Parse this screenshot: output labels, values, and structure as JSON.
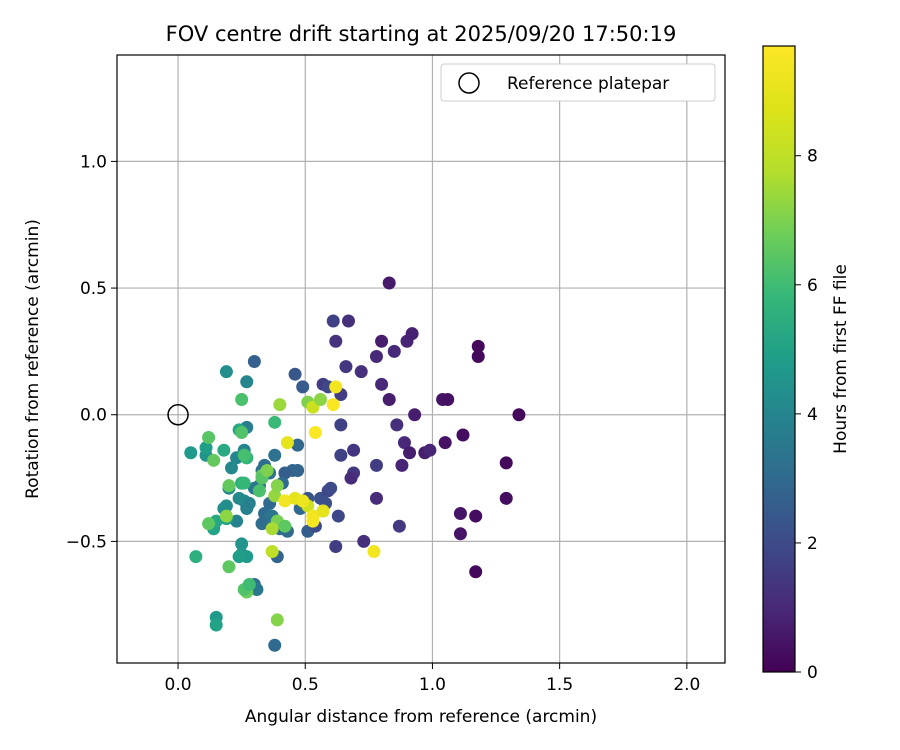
{
  "chart_data": {
    "type": "scatter",
    "title": "FOV centre drift starting at 2025/09/20 17:50:19",
    "xlabel": "Angular distance from reference (arcmin)",
    "ylabel": "Rotation from reference (arcmin)",
    "xlim": [
      -0.24,
      2.15
    ],
    "ylim": [
      -0.98,
      1.42
    ],
    "xticks": [
      0.0,
      0.5,
      1.0,
      1.5,
      2.0
    ],
    "xtick_labels": [
      "0.0",
      "0.5",
      "1.0",
      "1.5",
      "2.0"
    ],
    "yticks": [
      -0.5,
      0.0,
      0.5,
      1.0
    ],
    "ytick_labels": [
      "−0.5",
      "0.0",
      "0.5",
      "1.0"
    ],
    "grid": true,
    "legend": {
      "position": "top-right",
      "label": "Reference platepar"
    },
    "reference_point": {
      "x": 0.0,
      "y": 0.0
    },
    "colorbar": {
      "label": "Hours from first FF file",
      "min": 0,
      "max": 9.7,
      "ticks": [
        0,
        2,
        4,
        6,
        8
      ],
      "tick_labels": [
        "0",
        "2",
        "4",
        "6",
        "8"
      ],
      "colormap": "viridis"
    },
    "points": [
      [
        0.83,
        0.52,
        0.6
      ],
      [
        0.67,
        0.37,
        1.2
      ],
      [
        0.61,
        0.37,
        1.7
      ],
      [
        0.8,
        0.29,
        0.7
      ],
      [
        0.62,
        0.29,
        1.3
      ],
      [
        0.9,
        0.29,
        0.9
      ],
      [
        0.92,
        0.32,
        0.8
      ],
      [
        0.85,
        0.25,
        1.0
      ],
      [
        0.78,
        0.23,
        1.0
      ],
      [
        1.18,
        0.27,
        0.2
      ],
      [
        1.18,
        0.23,
        0.2
      ],
      [
        0.66,
        0.19,
        1.4
      ],
      [
        0.72,
        0.17,
        1.2
      ],
      [
        0.8,
        0.12,
        1.0
      ],
      [
        0.83,
        0.06,
        0.7
      ],
      [
        1.04,
        0.06,
        0.5
      ],
      [
        1.06,
        0.06,
        0.4
      ],
      [
        0.93,
        0.0,
        0.7
      ],
      [
        1.34,
        0.0,
        0.2
      ],
      [
        0.86,
        -0.04,
        1.2
      ],
      [
        0.64,
        -0.04,
        1.7
      ],
      [
        0.89,
        -0.11,
        1.0
      ],
      [
        1.05,
        -0.11,
        0.4
      ],
      [
        1.12,
        -0.08,
        0.3
      ],
      [
        0.97,
        -0.15,
        0.7
      ],
      [
        0.99,
        -0.14,
        0.9
      ],
      [
        0.91,
        -0.15,
        0.7
      ],
      [
        0.69,
        -0.14,
        1.4
      ],
      [
        0.64,
        -0.16,
        1.7
      ],
      [
        0.78,
        -0.2,
        1.6
      ],
      [
        0.88,
        -0.2,
        0.9
      ],
      [
        0.69,
        -0.23,
        1.4
      ],
      [
        0.68,
        -0.25,
        1.1
      ],
      [
        1.29,
        -0.19,
        0.2
      ],
      [
        1.29,
        -0.33,
        0.3
      ],
      [
        0.78,
        -0.33,
        1.1
      ],
      [
        0.87,
        -0.44,
        1.5
      ],
      [
        1.11,
        -0.39,
        0.5
      ],
      [
        1.17,
        -0.4,
        0.3
      ],
      [
        1.11,
        -0.47,
        0.5
      ],
      [
        0.73,
        -0.5,
        1.2
      ],
      [
        0.62,
        -0.52,
        1.6
      ],
      [
        1.17,
        -0.62,
        0.2
      ],
      [
        0.57,
        0.12,
        1.6
      ],
      [
        0.46,
        0.16,
        2.4
      ],
      [
        0.49,
        0.11,
        2.5
      ],
      [
        0.59,
        0.11,
        1.9
      ],
      [
        0.64,
        0.08,
        1.6
      ],
      [
        0.47,
        -0.12,
        2.9
      ],
      [
        0.45,
        -0.22,
        2.9
      ],
      [
        0.47,
        -0.22,
        2.8
      ],
      [
        0.42,
        -0.23,
        2.6
      ],
      [
        0.41,
        -0.27,
        3.0
      ],
      [
        0.34,
        -0.2,
        3.1
      ],
      [
        0.33,
        -0.22,
        3.1
      ],
      [
        0.38,
        -0.16,
        3.3
      ],
      [
        0.36,
        -0.23,
        3.3
      ],
      [
        0.3,
        0.21,
        2.7
      ],
      [
        0.27,
        0.13,
        4.0
      ],
      [
        0.19,
        0.17,
        4.3
      ],
      [
        0.27,
        -0.05,
        3.7
      ],
      [
        0.26,
        -0.14,
        4.0
      ],
      [
        0.23,
        -0.17,
        4.0
      ],
      [
        0.21,
        -0.21,
        4.1
      ],
      [
        0.27,
        -0.17,
        3.6
      ],
      [
        0.25,
        -0.27,
        4.0
      ],
      [
        0.24,
        -0.33,
        4.1
      ],
      [
        0.2,
        -0.29,
        4.2
      ],
      [
        0.19,
        -0.36,
        4.3
      ],
      [
        0.18,
        -0.37,
        4.3
      ],
      [
        0.23,
        -0.42,
        3.9
      ],
      [
        0.26,
        -0.34,
        4.2
      ],
      [
        0.28,
        -0.35,
        3.9
      ],
      [
        0.27,
        -0.37,
        3.8
      ],
      [
        0.3,
        -0.29,
        3.5
      ],
      [
        0.32,
        -0.28,
        3.4
      ],
      [
        0.33,
        -0.43,
        3.1
      ],
      [
        0.34,
        -0.39,
        3.1
      ],
      [
        0.36,
        -0.35,
        3.0
      ],
      [
        0.37,
        -0.4,
        3.4
      ],
      [
        0.37,
        -0.43,
        3.3
      ],
      [
        0.4,
        -0.45,
        3.2
      ],
      [
        0.39,
        -0.56,
        2.8
      ],
      [
        0.41,
        -0.44,
        3.0
      ],
      [
        0.43,
        -0.46,
        3.0
      ],
      [
        0.48,
        -0.37,
        2.9
      ],
      [
        0.51,
        -0.46,
        2.6
      ],
      [
        0.49,
        -0.34,
        2.8
      ],
      [
        0.51,
        -0.33,
        2.3
      ],
      [
        0.54,
        -0.44,
        2.0
      ],
      [
        0.56,
        -0.33,
        2.2
      ],
      [
        0.59,
        -0.3,
        1.9
      ],
      [
        0.6,
        -0.29,
        2.0
      ],
      [
        0.58,
        -0.35,
        2.2
      ],
      [
        0.63,
        -0.4,
        1.9
      ],
      [
        0.38,
        -0.91,
        3.0
      ],
      [
        0.3,
        -0.67,
        3.2
      ],
      [
        0.31,
        -0.69,
        3.5
      ],
      [
        0.25,
        -0.51,
        4.5
      ],
      [
        0.25,
        -0.55,
        4.5
      ],
      [
        0.27,
        -0.56,
        4.7
      ],
      [
        0.24,
        -0.56,
        4.9
      ],
      [
        0.15,
        -0.8,
        4.7
      ],
      [
        0.15,
        -0.83,
        5.0
      ],
      [
        0.07,
        -0.56,
        5.5
      ],
      [
        0.14,
        -0.45,
        5.0
      ],
      [
        0.15,
        -0.42,
        5.2
      ],
      [
        0.19,
        -0.41,
        5.0
      ],
      [
        0.05,
        -0.15,
        4.7
      ],
      [
        0.11,
        -0.16,
        4.5
      ],
      [
        0.11,
        -0.13,
        4.9
      ],
      [
        0.18,
        -0.14,
        5.3
      ],
      [
        0.24,
        -0.06,
        5.2
      ],
      [
        0.25,
        -0.07,
        6.3
      ],
      [
        0.27,
        -0.17,
        5.7
      ],
      [
        0.26,
        -0.16,
        6.1
      ],
      [
        0.25,
        -0.27,
        5.5
      ],
      [
        0.26,
        -0.27,
        5.8
      ],
      [
        0.32,
        -0.3,
        6.2
      ],
      [
        0.33,
        -0.24,
        6.7
      ],
      [
        0.33,
        -0.25,
        6.4
      ],
      [
        0.35,
        -0.22,
        7.0
      ],
      [
        0.38,
        -0.32,
        7.3
      ],
      [
        0.39,
        -0.28,
        7.1
      ],
      [
        0.39,
        -0.42,
        6.9
      ],
      [
        0.42,
        -0.44,
        6.5
      ],
      [
        0.2,
        -0.28,
        6.6
      ],
      [
        0.2,
        -0.6,
        6.5
      ],
      [
        0.27,
        -0.7,
        6.7
      ],
      [
        0.26,
        -0.69,
        6.3
      ],
      [
        0.28,
        -0.67,
        6.0
      ],
      [
        0.39,
        -0.81,
        7.1
      ],
      [
        0.4,
        0.04,
        7.4
      ],
      [
        0.38,
        -0.03,
        5.9
      ],
      [
        0.25,
        0.06,
        6.2
      ],
      [
        0.12,
        -0.09,
        6.4
      ],
      [
        0.14,
        -0.18,
        6.6
      ],
      [
        0.12,
        -0.43,
        6.5
      ],
      [
        0.19,
        -0.4,
        7.2
      ],
      [
        0.37,
        -0.45,
        7.6
      ],
      [
        0.37,
        -0.54,
        8.0
      ],
      [
        0.51,
        0.05,
        7.0
      ],
      [
        0.53,
        0.03,
        8.3
      ],
      [
        0.56,
        0.06,
        7.2
      ],
      [
        0.57,
        -0.38,
        7.7
      ],
      [
        0.51,
        -0.36,
        8.4
      ],
      [
        0.46,
        -0.33,
        8.9
      ],
      [
        0.49,
        -0.34,
        9.2
      ],
      [
        0.53,
        -0.42,
        9.5
      ],
      [
        0.53,
        -0.4,
        9.4
      ],
      [
        0.57,
        -0.38,
        9.0
      ],
      [
        0.62,
        0.11,
        9.4
      ],
      [
        0.61,
        0.04,
        9.6
      ],
      [
        0.54,
        -0.07,
        9.6
      ],
      [
        0.43,
        -0.11,
        9.0
      ],
      [
        0.42,
        -0.34,
        9.3
      ],
      [
        0.77,
        -0.54,
        9.4
      ]
    ]
  }
}
